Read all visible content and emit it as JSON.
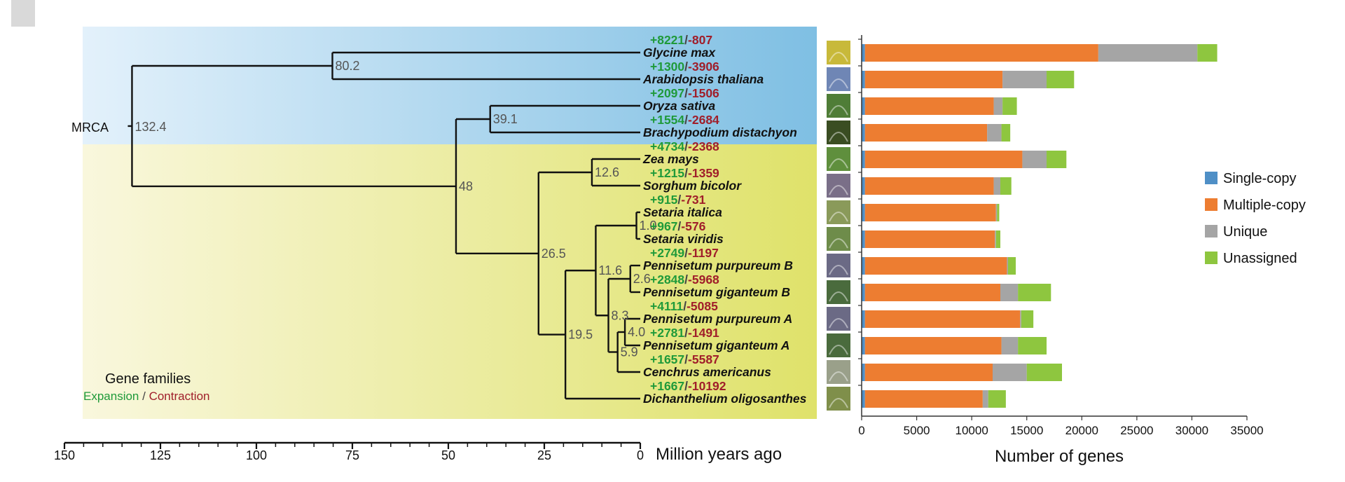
{
  "tree": {
    "root_label": "MRCA",
    "legend_title": "Gene families",
    "legend_expansion": "Expansion",
    "legend_separator": " / ",
    "legend_contraction": "Contraction",
    "colors": {
      "expansion": "#1f9a3a",
      "contraction": "#a01e2a",
      "node_label": "#555555",
      "dicot_bg_left": "#e3f1fb",
      "dicot_bg_right": "#7fbfe3",
      "monocot_bg_left": "#f9f7dd",
      "monocot_bg_right": "#dfe26a"
    },
    "taxa": [
      {
        "name": "Glycine max",
        "expansion": "+8221",
        "contraction": "-807"
      },
      {
        "name": "Arabidopsis thaliana",
        "expansion": "+1300",
        "contraction": "-3906"
      },
      {
        "name": "Oryza sativa",
        "expansion": "+2097",
        "contraction": "-1506"
      },
      {
        "name": "Brachypodium distachyon",
        "expansion": "+1554",
        "contraction": "-2684"
      },
      {
        "name": "Zea mays",
        "expansion": "+4734",
        "contraction": "-2368"
      },
      {
        "name": "Sorghum bicolor",
        "expansion": "+1215",
        "contraction": "-1359"
      },
      {
        "name": "Setaria italica",
        "expansion": "+915",
        "contraction": "-731"
      },
      {
        "name": "Setaria viridis",
        "expansion": "+967",
        "contraction": "-576"
      },
      {
        "name": "Pennisetum purpureum B",
        "expansion": "+2749",
        "contraction": "-1197"
      },
      {
        "name": "Pennisetum giganteum B",
        "expansion": "+2848",
        "contraction": "-5968"
      },
      {
        "name": "Pennisetum purpureum A",
        "expansion": "+4111",
        "contraction": "-5085"
      },
      {
        "name": "Pennisetum giganteum A",
        "expansion": "+2781",
        "contraction": "-1491"
      },
      {
        "name": "Cenchrus americanus",
        "expansion": "+1657",
        "contraction": "-5587"
      },
      {
        "name": "Dichanthelium oligosanthes",
        "expansion": "+1667",
        "contraction": "-10192"
      }
    ],
    "nodes": [
      {
        "id": "root",
        "age": 132.4,
        "label": "132.4",
        "children": [
          "n_dicot",
          "n_mono"
        ]
      },
      {
        "id": "n_dicot",
        "age": 80.2,
        "label": "80.2",
        "children": [
          0,
          1
        ]
      },
      {
        "id": "n_mono",
        "age": 48,
        "label": "48",
        "children": [
          "n_bop",
          "n_pacmad"
        ]
      },
      {
        "id": "n_bop",
        "age": 39.1,
        "label": "39.1",
        "children": [
          2,
          3
        ]
      },
      {
        "id": "n_pacmad",
        "age": 26.5,
        "label": "26.5",
        "children": [
          "n_zs",
          "n_pan"
        ]
      },
      {
        "id": "n_zs",
        "age": 12.6,
        "label": "12.6",
        "children": [
          4,
          5
        ]
      },
      {
        "id": "n_pan",
        "age": 19.5,
        "label": "19.5",
        "children": [
          "n_core",
          13
        ]
      },
      {
        "id": "n_core",
        "age": 11.6,
        "label": "11.6",
        "children": [
          "n_set",
          "n_penn"
        ]
      },
      {
        "id": "n_set",
        "age": 1.0,
        "label": "1.0",
        "children": [
          6,
          7
        ]
      },
      {
        "id": "n_penn",
        "age": 8.3,
        "label": "8.3",
        "children": [
          "n_pb",
          "n_pa"
        ]
      },
      {
        "id": "n_pb",
        "age": 2.6,
        "label": "2.6",
        "children": [
          8,
          9
        ]
      },
      {
        "id": "n_pa",
        "age": 5.9,
        "label": "5.9",
        "children": [
          "n_pa2",
          12
        ]
      },
      {
        "id": "n_pa2",
        "age": 4.0,
        "label": "4.0",
        "children": [
          10,
          11
        ]
      }
    ]
  },
  "time_axis": {
    "label": "Million years ago",
    "range": [
      150,
      0
    ],
    "ticks": [
      150,
      125,
      100,
      75,
      50,
      25,
      0
    ],
    "tick_labels": [
      "150",
      "125",
      "100",
      "75",
      "50",
      "25",
      "0"
    ]
  },
  "chart_data": {
    "type": "bar",
    "orientation": "horizontal",
    "stacked": true,
    "categories": [
      "Glycine max",
      "Arabidopsis thaliana",
      "Oryza sativa",
      "Brachypodium distachyon",
      "Zea mays",
      "Sorghum bicolor",
      "Setaria italica",
      "Setaria viridis",
      "Pennisetum purpureum B",
      "Pennisetum giganteum B",
      "Pennisetum purpureum A",
      "Pennisetum giganteum A",
      "Cenchrus americanus",
      "Dichanthelium oligosanthes"
    ],
    "series": [
      {
        "name": "Single-copy",
        "color": "#4f8fc6",
        "values": [
          300,
          300,
          300,
          300,
          300,
          300,
          300,
          300,
          300,
          300,
          300,
          300,
          300,
          300
        ]
      },
      {
        "name": "Multiple-copy",
        "color": "#ed7d31",
        "values": [
          21200,
          12500,
          11700,
          11100,
          14300,
          11700,
          11900,
          11800,
          12900,
          12300,
          14100,
          12400,
          11600,
          10700
        ]
      },
      {
        "name": "Unique",
        "color": "#a5a5a5",
        "values": [
          9000,
          4000,
          800,
          1300,
          2200,
          600,
          100,
          100,
          100,
          1600,
          100,
          1500,
          3100,
          500
        ]
      },
      {
        "name": "Unassigned",
        "color": "#8ec63f",
        "values": [
          1800,
          2500,
          1300,
          800,
          1800,
          1000,
          200,
          400,
          700,
          3000,
          1100,
          2600,
          3200,
          1600
        ]
      }
    ],
    "xlabel": "Number of genes",
    "ylabel": "",
    "xlim": [
      0,
      35000
    ],
    "xticks": [
      0,
      5000,
      10000,
      15000,
      20000,
      25000,
      30000,
      35000
    ],
    "xtick_labels": [
      "0",
      "5000",
      "10000",
      "15000",
      "20000",
      "25000",
      "30000",
      "35000"
    ],
    "legend": [
      "Single-copy",
      "Multiple-copy",
      "Unique",
      "Unassigned"
    ],
    "legend_position": "right",
    "grid": false
  },
  "thumbnails": {
    "colors": [
      "#c8b93a",
      "#6f86b5",
      "#4f7d37",
      "#3a4d22",
      "#5f8f3d",
      "#7a6f88",
      "#8a9a5a",
      "#6e8c4a",
      "#6b6a85",
      "#4a6b3d",
      "#6b6a85",
      "#4a6b3d",
      "#9aa08a",
      "#7f8f4a"
    ]
  }
}
